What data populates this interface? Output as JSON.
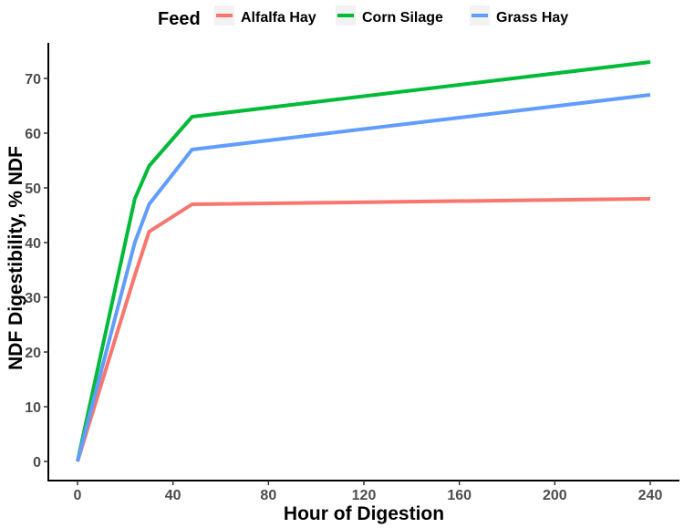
{
  "chart_data": {
    "type": "line",
    "title": "",
    "xlabel": "Hour of Digestion",
    "ylabel": "NDF Digestibility, % NDF",
    "xlim": [
      -12,
      252
    ],
    "ylim": [
      -1.5,
      78
    ],
    "xticks": [
      0,
      40,
      80,
      120,
      160,
      200,
      240
    ],
    "yticks": [
      0,
      10,
      20,
      30,
      40,
      50,
      60,
      70
    ],
    "grid": false,
    "legend": {
      "title": "Feed",
      "placement": "top"
    },
    "series": [
      {
        "name": "Alfalfa Hay",
        "color": "#F8766D",
        "x": [
          0,
          24,
          30,
          48,
          240
        ],
        "y": [
          0,
          34,
          42,
          47,
          48
        ]
      },
      {
        "name": "Corn Silage",
        "color": "#00BA38",
        "x": [
          0,
          24,
          30,
          48,
          240
        ],
        "y": [
          0,
          48,
          54,
          63,
          73
        ]
      },
      {
        "name": "Grass Hay",
        "color": "#619CFF",
        "x": [
          0,
          24,
          30,
          48,
          240
        ],
        "y": [
          0,
          40,
          47,
          57,
          67
        ]
      }
    ]
  }
}
